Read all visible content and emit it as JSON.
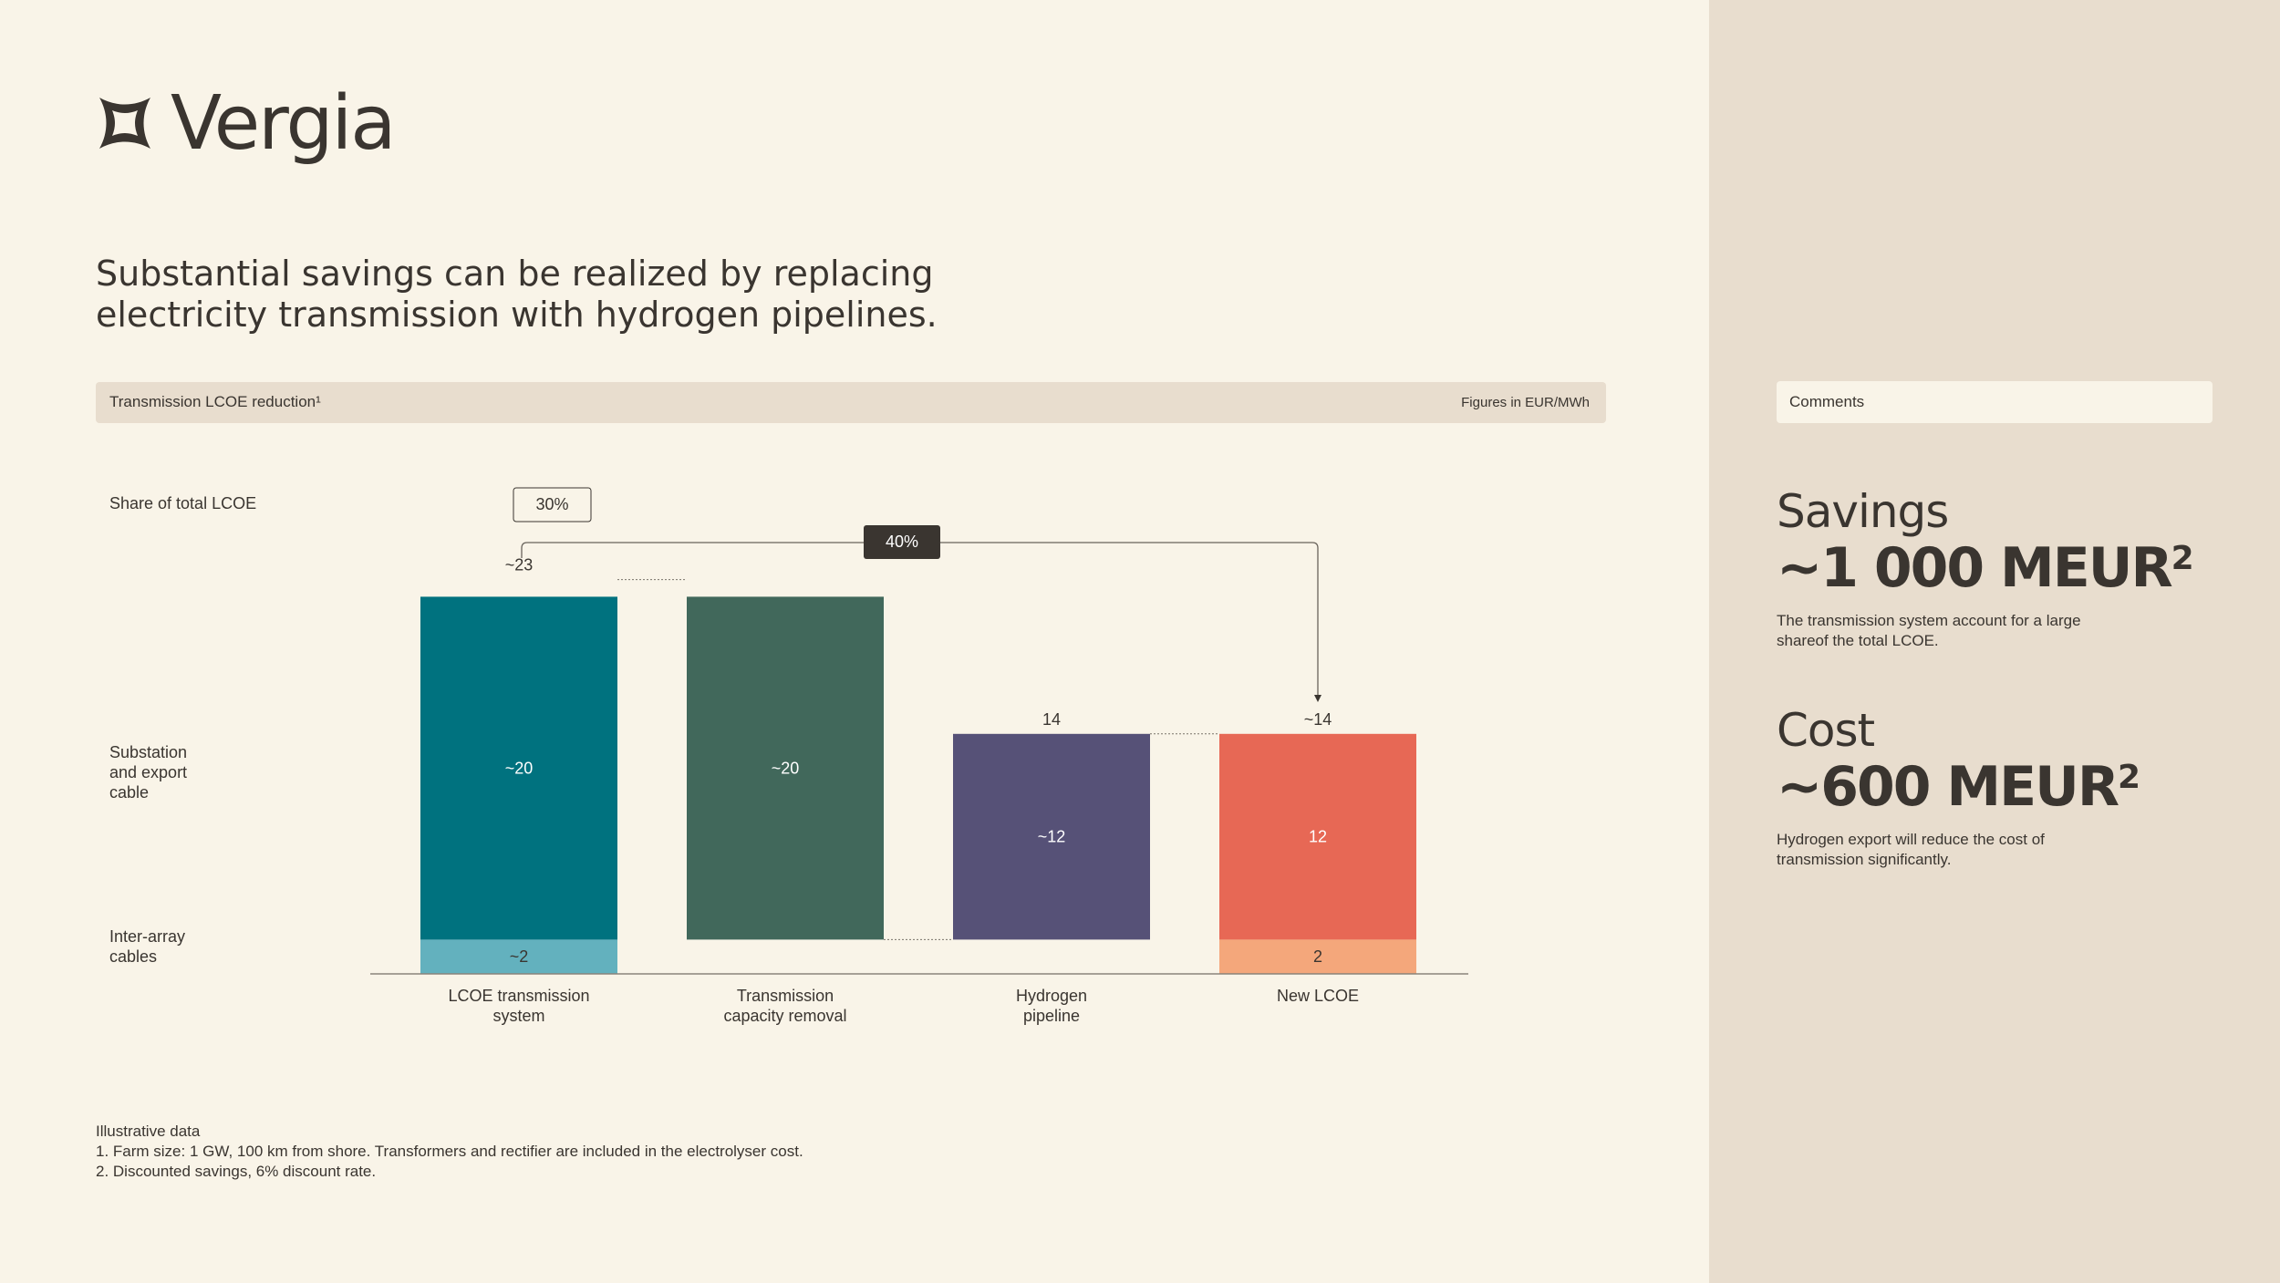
{
  "brand": {
    "name": "Vergia"
  },
  "headline": "Substantial savings can be realized by replacing electricity transmission with hydrogen pipelines.",
  "chart_header": {
    "title": "Transmission LCOE reduction¹",
    "units": "Figures in EUR/MWh"
  },
  "row_labels": {
    "share": "Share of total LCOE",
    "substation": "Substation and export cable",
    "inter_array": "Inter-array cables"
  },
  "chart_data": {
    "type": "bar",
    "categories": [
      "LCOE transmission system",
      "Transmission capacity removal",
      "Hydrogen pipeline",
      "New LCOE"
    ],
    "series": [
      {
        "name": "Inter-array cables",
        "values": [
          2,
          0,
          0,
          2
        ]
      },
      {
        "name": "Substation and export cable",
        "values": [
          20,
          20,
          12,
          12
        ]
      }
    ],
    "waterfall_bars": [
      {
        "category": "LCOE transmission system",
        "start": 0,
        "end": 23,
        "segments": [
          {
            "value": 2,
            "label": "~2",
            "color": "#63B1BE"
          },
          {
            "value": 20,
            "label": "~20",
            "color": "#00727F"
          }
        ],
        "total_label": "~23"
      },
      {
        "category": "Transmission capacity removal",
        "start": 2,
        "end": 23,
        "segments": [
          {
            "value": 20,
            "label": "~20",
            "color": "#41685B"
          }
        ],
        "total_label": ""
      },
      {
        "category": "Hydrogen pipeline",
        "start": 2,
        "end": 14,
        "segments": [
          {
            "value": 12,
            "label": "~12",
            "color": "#565177"
          }
        ],
        "total_label": "14"
      },
      {
        "category": "New LCOE",
        "start": 0,
        "end": 14,
        "segments": [
          {
            "value": 2,
            "label": "2",
            "color": "#F4A77B"
          },
          {
            "value": 12,
            "label": "12",
            "color": "#E76855"
          }
        ],
        "total_label": "~14"
      }
    ],
    "annotations": {
      "share_of_total": "30%",
      "reduction": "40%"
    },
    "ylim": [
      0,
      24
    ],
    "xlabel": "",
    "ylabel": ""
  },
  "footnotes": [
    "Illustrative data",
    "1. Farm size: 1 GW, 100 km from shore. Transformers and rectifier are included in the electrolyser cost.",
    "2. Discounted savings, 6% discount rate."
  ],
  "sidebar": {
    "comments_label": "Comments",
    "savings": {
      "label": "Savings",
      "value": "~1 000 MEUR",
      "sup": "2",
      "description": "The transmission system account for a large shareof the total LCOE."
    },
    "cost": {
      "label": "Cost",
      "value": "~600 MEUR",
      "sup": "2",
      "description": "Hydrogen export will reduce the cost of transmission significantly."
    }
  },
  "colors": {
    "background": "#F9F4E8",
    "sidebar": "#E8DDCE",
    "text": "#3A3530"
  }
}
